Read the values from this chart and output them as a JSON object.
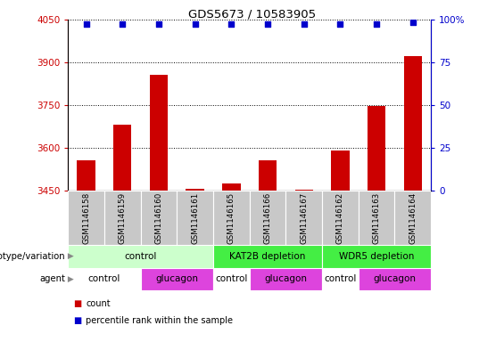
{
  "title": "GDS5673 / 10583905",
  "samples": [
    "GSM1146158",
    "GSM1146159",
    "GSM1146160",
    "GSM1146161",
    "GSM1146165",
    "GSM1146166",
    "GSM1146167",
    "GSM1146162",
    "GSM1146163",
    "GSM1146164"
  ],
  "counts": [
    3558,
    3680,
    3855,
    3458,
    3475,
    3558,
    3453,
    3590,
    3748,
    3920
  ],
  "percentiles": [
    97,
    97,
    97,
    97,
    97,
    97,
    97,
    97,
    97,
    98
  ],
  "ylim_left": [
    3450,
    4050
  ],
  "ylim_right": [
    0,
    100
  ],
  "yticks_left": [
    3450,
    3600,
    3750,
    3900,
    4050
  ],
  "yticks_right": [
    0,
    25,
    50,
    75,
    100
  ],
  "bar_color": "#cc0000",
  "dot_color": "#0000cc",
  "genotype_groups": [
    {
      "label": "control",
      "start": 0,
      "end": 4,
      "color": "#ccffcc"
    },
    {
      "label": "KAT2B depletion",
      "start": 4,
      "end": 7,
      "color": "#44ee44"
    },
    {
      "label": "WDR5 depletion",
      "start": 7,
      "end": 10,
      "color": "#44ee44"
    }
  ],
  "agent_groups": [
    {
      "label": "control",
      "start": 0,
      "end": 2,
      "color": "#ffffff"
    },
    {
      "label": "glucagon",
      "start": 2,
      "end": 4,
      "color": "#dd44dd"
    },
    {
      "label": "control",
      "start": 4,
      "end": 5,
      "color": "#ffffff"
    },
    {
      "label": "glucagon",
      "start": 5,
      "end": 7,
      "color": "#dd44dd"
    },
    {
      "label": "control",
      "start": 7,
      "end": 8,
      "color": "#ffffff"
    },
    {
      "label": "glucagon",
      "start": 8,
      "end": 10,
      "color": "#dd44dd"
    }
  ],
  "legend_count_color": "#cc0000",
  "legend_pct_color": "#0000cc",
  "left_tick_color": "#cc0000",
  "right_tick_color": "#0000cc",
  "sample_bg_color": "#c8c8c8",
  "bar_width": 0.5
}
